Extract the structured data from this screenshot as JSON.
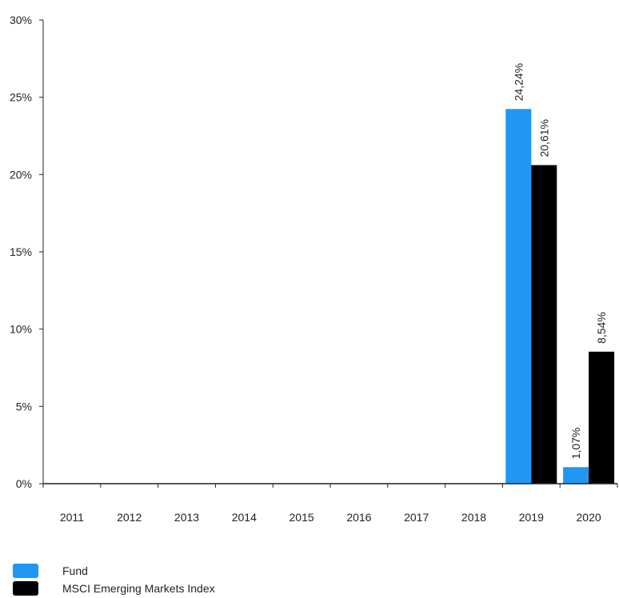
{
  "chart_data": {
    "type": "bar",
    "categories": [
      "2011",
      "2012",
      "2013",
      "2014",
      "2015",
      "2016",
      "2017",
      "2018",
      "2019",
      "2020"
    ],
    "series": [
      {
        "name": "Fund",
        "color": "#2196f3",
        "values": [
          null,
          null,
          null,
          null,
          null,
          null,
          null,
          null,
          24.24,
          1.07
        ],
        "labels": [
          "",
          "",
          "",
          "",
          "",
          "",
          "",
          "",
          "24,24%",
          "1,07%"
        ]
      },
      {
        "name": "MSCI Emerging Markets Index",
        "color": "#000000",
        "values": [
          null,
          null,
          null,
          null,
          null,
          null,
          null,
          null,
          20.61,
          8.54
        ],
        "labels": [
          "",
          "",
          "",
          "",
          "",
          "",
          "",
          "",
          "20,61%",
          "8,54%"
        ]
      }
    ],
    "ylim": [
      0,
      30
    ],
    "yticks": [
      0,
      5,
      10,
      15,
      20,
      25,
      30
    ],
    "ytick_labels": [
      "0%",
      "5%",
      "10%",
      "15%",
      "20%",
      "25%",
      "30%"
    ],
    "grid": false,
    "legend_position": "bottom-left"
  }
}
